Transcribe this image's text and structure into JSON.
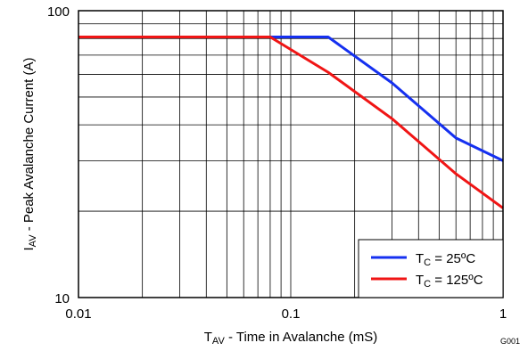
{
  "chart_data": {
    "type": "line",
    "x_scale": "log",
    "y_scale": "log",
    "xlim": [
      0.01,
      1
    ],
    "ylim": [
      10,
      100
    ],
    "x_ticks": [
      "0.01",
      "0.1",
      "1"
    ],
    "y_ticks": [
      "10",
      "100"
    ],
    "xlabel": {
      "main": "T",
      "sub": "AV",
      "rest": " - Time in Avalanche (mS)"
    },
    "ylabel": {
      "main": "I",
      "sub": "AV",
      "rest": " - Peak Avalanche Current (A)"
    },
    "grid": true,
    "legend_position": "bottom-right",
    "series": [
      {
        "legend": {
          "main": "T",
          "sub": "C",
          "rest": " = 25ºC"
        },
        "color": "#1530f0",
        "points": [
          [
            0.01,
            81
          ],
          [
            0.15,
            81
          ],
          [
            0.3,
            56
          ],
          [
            0.6,
            36
          ],
          [
            1,
            30
          ]
        ]
      },
      {
        "legend": {
          "main": "T",
          "sub": "C",
          "rest": " = 125ºC"
        },
        "color": "#f01515",
        "points": [
          [
            0.01,
            81
          ],
          [
            0.08,
            81
          ],
          [
            0.15,
            61
          ],
          [
            0.3,
            42
          ],
          [
            0.6,
            27
          ],
          [
            1,
            20.5
          ]
        ]
      }
    ],
    "figure_id": "G001"
  }
}
